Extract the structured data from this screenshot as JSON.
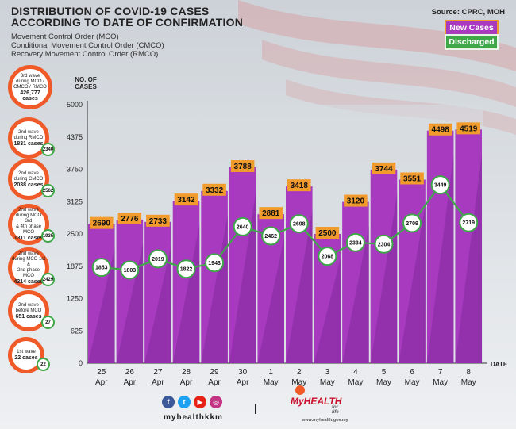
{
  "header": {
    "title_line1": "DISTRIBUTION OF COVID-19 CASES",
    "title_line2": "ACCORDING TO DATE OF CONFIRMATION",
    "sub1": "Movement Control Order (MCO)",
    "sub2": "Conditional Movement Control Order (CMCO)",
    "sub3": "Recovery Movement Control Order (RMCO)",
    "source": "Source: CPRC, MOH"
  },
  "legend": {
    "new": "New Cases",
    "discharged": "Discharged"
  },
  "waves": [
    {
      "l1": "3rd wave",
      "l2": "during MCO /",
      "l3": "CMCO / RMCO",
      "count": "426,777",
      "l4": "cases",
      "discharged": ""
    },
    {
      "l1": "2nd wave",
      "l2": "during RMCO",
      "l3": "",
      "count": "1831",
      "l4": "cases",
      "discharged": "2340"
    },
    {
      "l1": "2nd wave",
      "l2": "during CMCO",
      "l3": "",
      "count": "2038",
      "l4": "cases",
      "discharged": "2562"
    },
    {
      "l1": "2nd wave",
      "l2": "during MCO 3rd",
      "l3": "& 4th phase MCO",
      "count": "1311",
      "l4": "cases",
      "discharged": "1935"
    },
    {
      "l1": "2nd wave",
      "l2": "during MCO 1st &",
      "l3": "2nd phase MCO",
      "count": "4314",
      "l4": "cases",
      "discharged": "2429"
    },
    {
      "l1": "2nd wave",
      "l2": "before MCO",
      "l3": "",
      "count": "651",
      "l4": "cases",
      "discharged": "27"
    },
    {
      "l1": "1st wave",
      "l2": "",
      "l3": "",
      "count": "22",
      "l4": "cases",
      "discharged": "22"
    }
  ],
  "footer": {
    "handle": "myhealthkkm",
    "logo_my": "My",
    "logo_health": "HEALTH",
    "tagline": "for life",
    "url": "www.myhealth.gov.my"
  },
  "colors": {
    "bar": "#a73abf",
    "bar_dark": "#7d2795",
    "label_bg": "#f19b2c",
    "line": "#3ea848",
    "wave_ring": "#f05a28"
  },
  "chart_data": {
    "type": "bar",
    "title": "DISTRIBUTION OF COVID-19 CASES ACCORDING TO DATE OF CONFIRMATION",
    "ylabel": "NO. OF CASES",
    "xlabel": "DATE",
    "ylim": [
      0,
      5000
    ],
    "yticks": [
      0,
      625,
      1250,
      1875,
      2500,
      3125,
      3750,
      4375,
      5000
    ],
    "categories": [
      "25 Apr",
      "26 Apr",
      "27 Apr",
      "28 Apr",
      "29 Apr",
      "30 Apr",
      "1 May",
      "2 May",
      "3 May",
      "4 May",
      "5 May",
      "6 May",
      "7 May",
      "8 May"
    ],
    "series": [
      {
        "name": "New Cases",
        "type": "bar",
        "values": [
          2690,
          2776,
          2733,
          3142,
          3332,
          3788,
          2881,
          3418,
          2500,
          3120,
          3744,
          3551,
          4498,
          4519
        ]
      },
      {
        "name": "Discharged",
        "type": "line",
        "values": [
          1853,
          1803,
          2019,
          1822,
          1943,
          2640,
          2462,
          2698,
          2068,
          2334,
          2304,
          2709,
          3449,
          2719
        ]
      }
    ]
  }
}
